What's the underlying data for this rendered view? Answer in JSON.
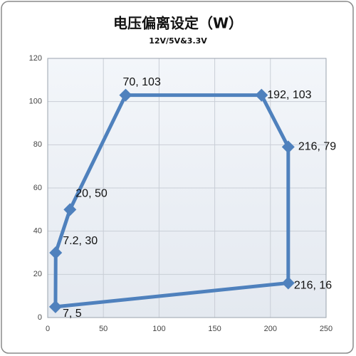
{
  "chart_data": {
    "type": "scatter-line",
    "title": "电压偏离设定（W）",
    "subtitle": "12V/5V&3.3V",
    "x": [
      7,
      7.2,
      20,
      70,
      192,
      216,
      216
    ],
    "series": [
      {
        "name": "12V/5V&3.3V",
        "color": "#4f81bd",
        "values": [
          5,
          30,
          50,
          103,
          103,
          79,
          16
        ],
        "value_labels": [
          "7, 5",
          "7.2, 30",
          "20, 50",
          "70, 103",
          "192, 103",
          "216, 79",
          "216, 16"
        ]
      }
    ],
    "closed": true,
    "xlim": [
      0,
      250
    ],
    "xticks": [
      0,
      50,
      100,
      150,
      200,
      250
    ],
    "ylim": [
      0,
      120
    ],
    "yticks": [
      0,
      20,
      40,
      60,
      80,
      100,
      120
    ],
    "grid": true
  }
}
